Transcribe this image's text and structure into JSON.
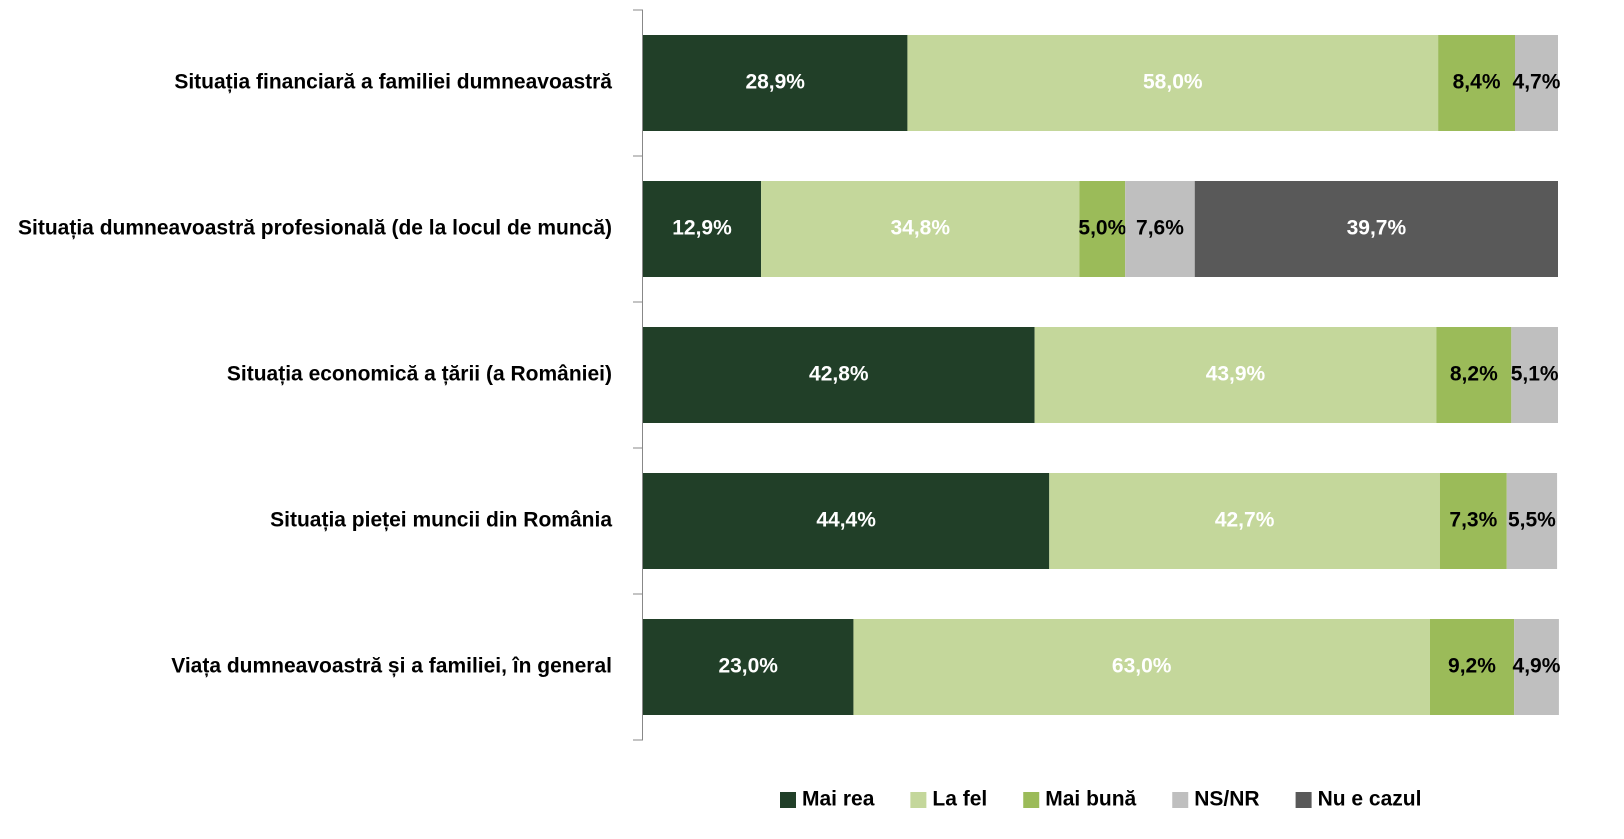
{
  "chart_data": {
    "type": "stacked-bar",
    "orientation": "horizontal",
    "categories": [
      "Situația financiară a familiei dumneavoastră",
      "Situația dumneavoastră profesională (de la locul de muncă)",
      "Situația economică a țării (a României)",
      "Situația pieței muncii din România",
      "Viața dumneavoastră și a familiei, în general"
    ],
    "series": [
      {
        "name": "Mai rea",
        "color": "#213f28",
        "values": [
          28.9,
          12.9,
          42.8,
          44.4,
          23.0
        ],
        "value_labels": [
          "28,9%",
          "12,9%",
          "42,8%",
          "44,4%",
          "23,0%"
        ]
      },
      {
        "name": "La fel",
        "color": "#c4d79b",
        "values": [
          58.0,
          34.8,
          43.9,
          42.7,
          63.0
        ],
        "value_labels": [
          "58,0%",
          "34,8%",
          "43,9%",
          "42,7%",
          "63,0%"
        ]
      },
      {
        "name": "Mai bună",
        "color": "#9bbb59",
        "values": [
          8.4,
          5.0,
          8.2,
          7.3,
          9.2
        ],
        "value_labels": [
          "8,4%",
          "5,0%",
          "8,2%",
          "7,3%",
          "9,2%"
        ]
      },
      {
        "name": "NS/NR",
        "color": "#bfbfbf",
        "values": [
          4.7,
          7.6,
          5.1,
          5.5,
          4.9
        ],
        "value_labels": [
          "4,7%",
          "7,6%",
          "5,1%",
          "5,5%",
          "4,9%"
        ]
      },
      {
        "name": "Nu e cazul",
        "color": "#595959",
        "values": [
          null,
          39.7,
          null,
          null,
          null
        ],
        "value_labels": [
          null,
          "39,7%",
          null,
          null,
          null
        ]
      }
    ],
    "xlim": [
      0,
      100
    ],
    "legend": "bottom"
  }
}
